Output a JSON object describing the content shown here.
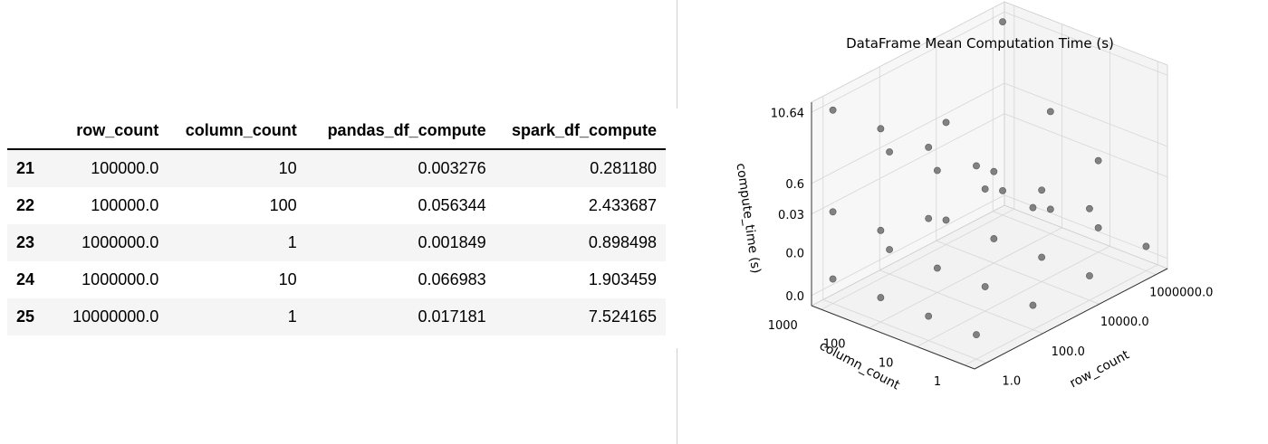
{
  "table": {
    "headers": [
      "",
      "row_count",
      "column_count",
      "pandas_df_compute",
      "spark_df_compute"
    ],
    "rows": [
      {
        "index": "21",
        "row_count": "100000.0",
        "column_count": "10",
        "pandas_df_compute": "0.003276",
        "spark_df_compute": "0.281180"
      },
      {
        "index": "22",
        "row_count": "100000.0",
        "column_count": "100",
        "pandas_df_compute": "0.056344",
        "spark_df_compute": "2.433687"
      },
      {
        "index": "23",
        "row_count": "1000000.0",
        "column_count": "1",
        "pandas_df_compute": "0.001849",
        "spark_df_compute": "0.898498"
      },
      {
        "index": "24",
        "row_count": "1000000.0",
        "column_count": "10",
        "pandas_df_compute": "0.066983",
        "spark_df_compute": "1.903459"
      },
      {
        "index": "25",
        "row_count": "10000000.0",
        "column_count": "1",
        "pandas_df_compute": "0.017181",
        "spark_df_compute": "7.524165"
      }
    ]
  },
  "chart_data": {
    "type": "scatter",
    "projection": "3d",
    "title": "DataFrame Mean Computation Time (s)",
    "xlabel": "row_count",
    "ylabel": "column_count",
    "zlabel": "compute_time (s)",
    "xticks": [
      "1.0",
      "100.0",
      "10000.0",
      "1000000.0"
    ],
    "yticks": [
      "1",
      "10",
      "100",
      "1000"
    ],
    "zticks": [
      "0.0",
      "0.0",
      "0.03",
      "0.6",
      "10.64"
    ],
    "grid": true,
    "marker_color": "#6e6e6e",
    "points": [
      {
        "x": 1.0,
        "y": 1000,
        "z": 10.64
      },
      {
        "x": 1.0,
        "y": 100,
        "z": 10.64
      },
      {
        "x": 1.0,
        "y": 10,
        "z": 10.64
      },
      {
        "x": 1.0,
        "y": 1,
        "z": 10.64
      },
      {
        "x": 100.0,
        "y": 1000,
        "z": 0.6
      },
      {
        "x": 100.0,
        "y": 100,
        "z": 0.6
      },
      {
        "x": 100.0,
        "y": 10,
        "z": 0.6
      },
      {
        "x": 1.0,
        "y": 1000,
        "z": 0.03
      },
      {
        "x": 100.0,
        "y": 1,
        "z": 0.6
      },
      {
        "x": 1.0,
        "y": 100,
        "z": 0.03
      },
      {
        "x": 1.0,
        "y": 10,
        "z": 0.6
      },
      {
        "x": 1000000.0,
        "y": 1000,
        "z": 10.64
      },
      {
        "x": 10000.0,
        "y": 1000,
        "z": 0.6
      },
      {
        "x": 1000000.0,
        "y": 100,
        "z": 0.6
      },
      {
        "x": 10000.0,
        "y": 100,
        "z": 0.03
      },
      {
        "x": 1000000.0,
        "y": 10,
        "z": 0.03
      },
      {
        "x": 10000.0,
        "y": 10,
        "z": 0.03
      },
      {
        "x": 10000.0,
        "y": 1,
        "z": 0.03
      },
      {
        "x": 1000000.0,
        "y": 1,
        "z": 0.0
      },
      {
        "x": 1.0,
        "y": 1000,
        "z": 0.0
      },
      {
        "x": 1.0,
        "y": 100,
        "z": 0.0
      },
      {
        "x": 1.0,
        "y": 10,
        "z": 0.0
      },
      {
        "x": 1.0,
        "y": 1,
        "z": 0.0
      },
      {
        "x": 100.0,
        "y": 1000,
        "z": 0.0
      },
      {
        "x": 100.0,
        "y": 100,
        "z": 0.0
      },
      {
        "x": 100.0,
        "y": 10,
        "z": 0.0
      },
      {
        "x": 100.0,
        "y": 1,
        "z": 0.0
      },
      {
        "x": 10000.0,
        "y": 1000,
        "z": 0.0
      },
      {
        "x": 10000.0,
        "y": 100,
        "z": 0.0
      },
      {
        "x": 10000.0,
        "y": 10,
        "z": 0.0
      },
      {
        "x": 10000.0,
        "y": 1,
        "z": 0.0
      },
      {
        "x": 1000000.0,
        "y": 1000,
        "z": 0.0
      },
      {
        "x": 1000000.0,
        "y": 100,
        "z": 0.0
      },
      {
        "x": 1000000.0,
        "y": 10,
        "z": 0.0
      }
    ]
  }
}
